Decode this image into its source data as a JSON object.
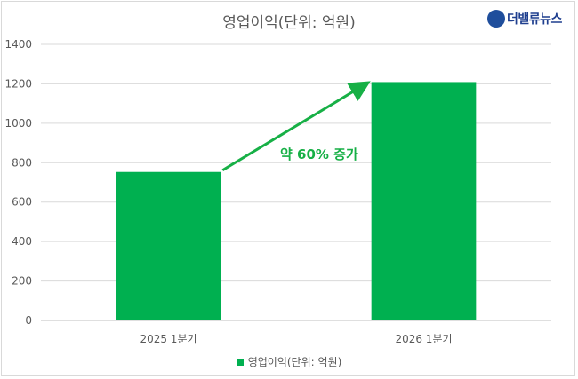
{
  "branding": {
    "logo_text": "더밸류뉴스"
  },
  "chart_data": {
    "type": "bar",
    "title": "영업이익(단위: 억원)",
    "categories": [
      "2025 1분기",
      "2026 1분기"
    ],
    "series": [
      {
        "name": "영업이익(단위: 억원)",
        "values": [
          753,
          1209
        ],
        "color": "#00b050"
      }
    ],
    "ylim": [
      0,
      1400
    ],
    "yticks": [
      0,
      200,
      400,
      600,
      800,
      1000,
      1200,
      1400
    ],
    "grid": true,
    "legend_position": "bottom",
    "annotation": {
      "text": "약 60% 증가",
      "color": "#17b046",
      "arrow": "from first bar top to second bar top"
    }
  }
}
